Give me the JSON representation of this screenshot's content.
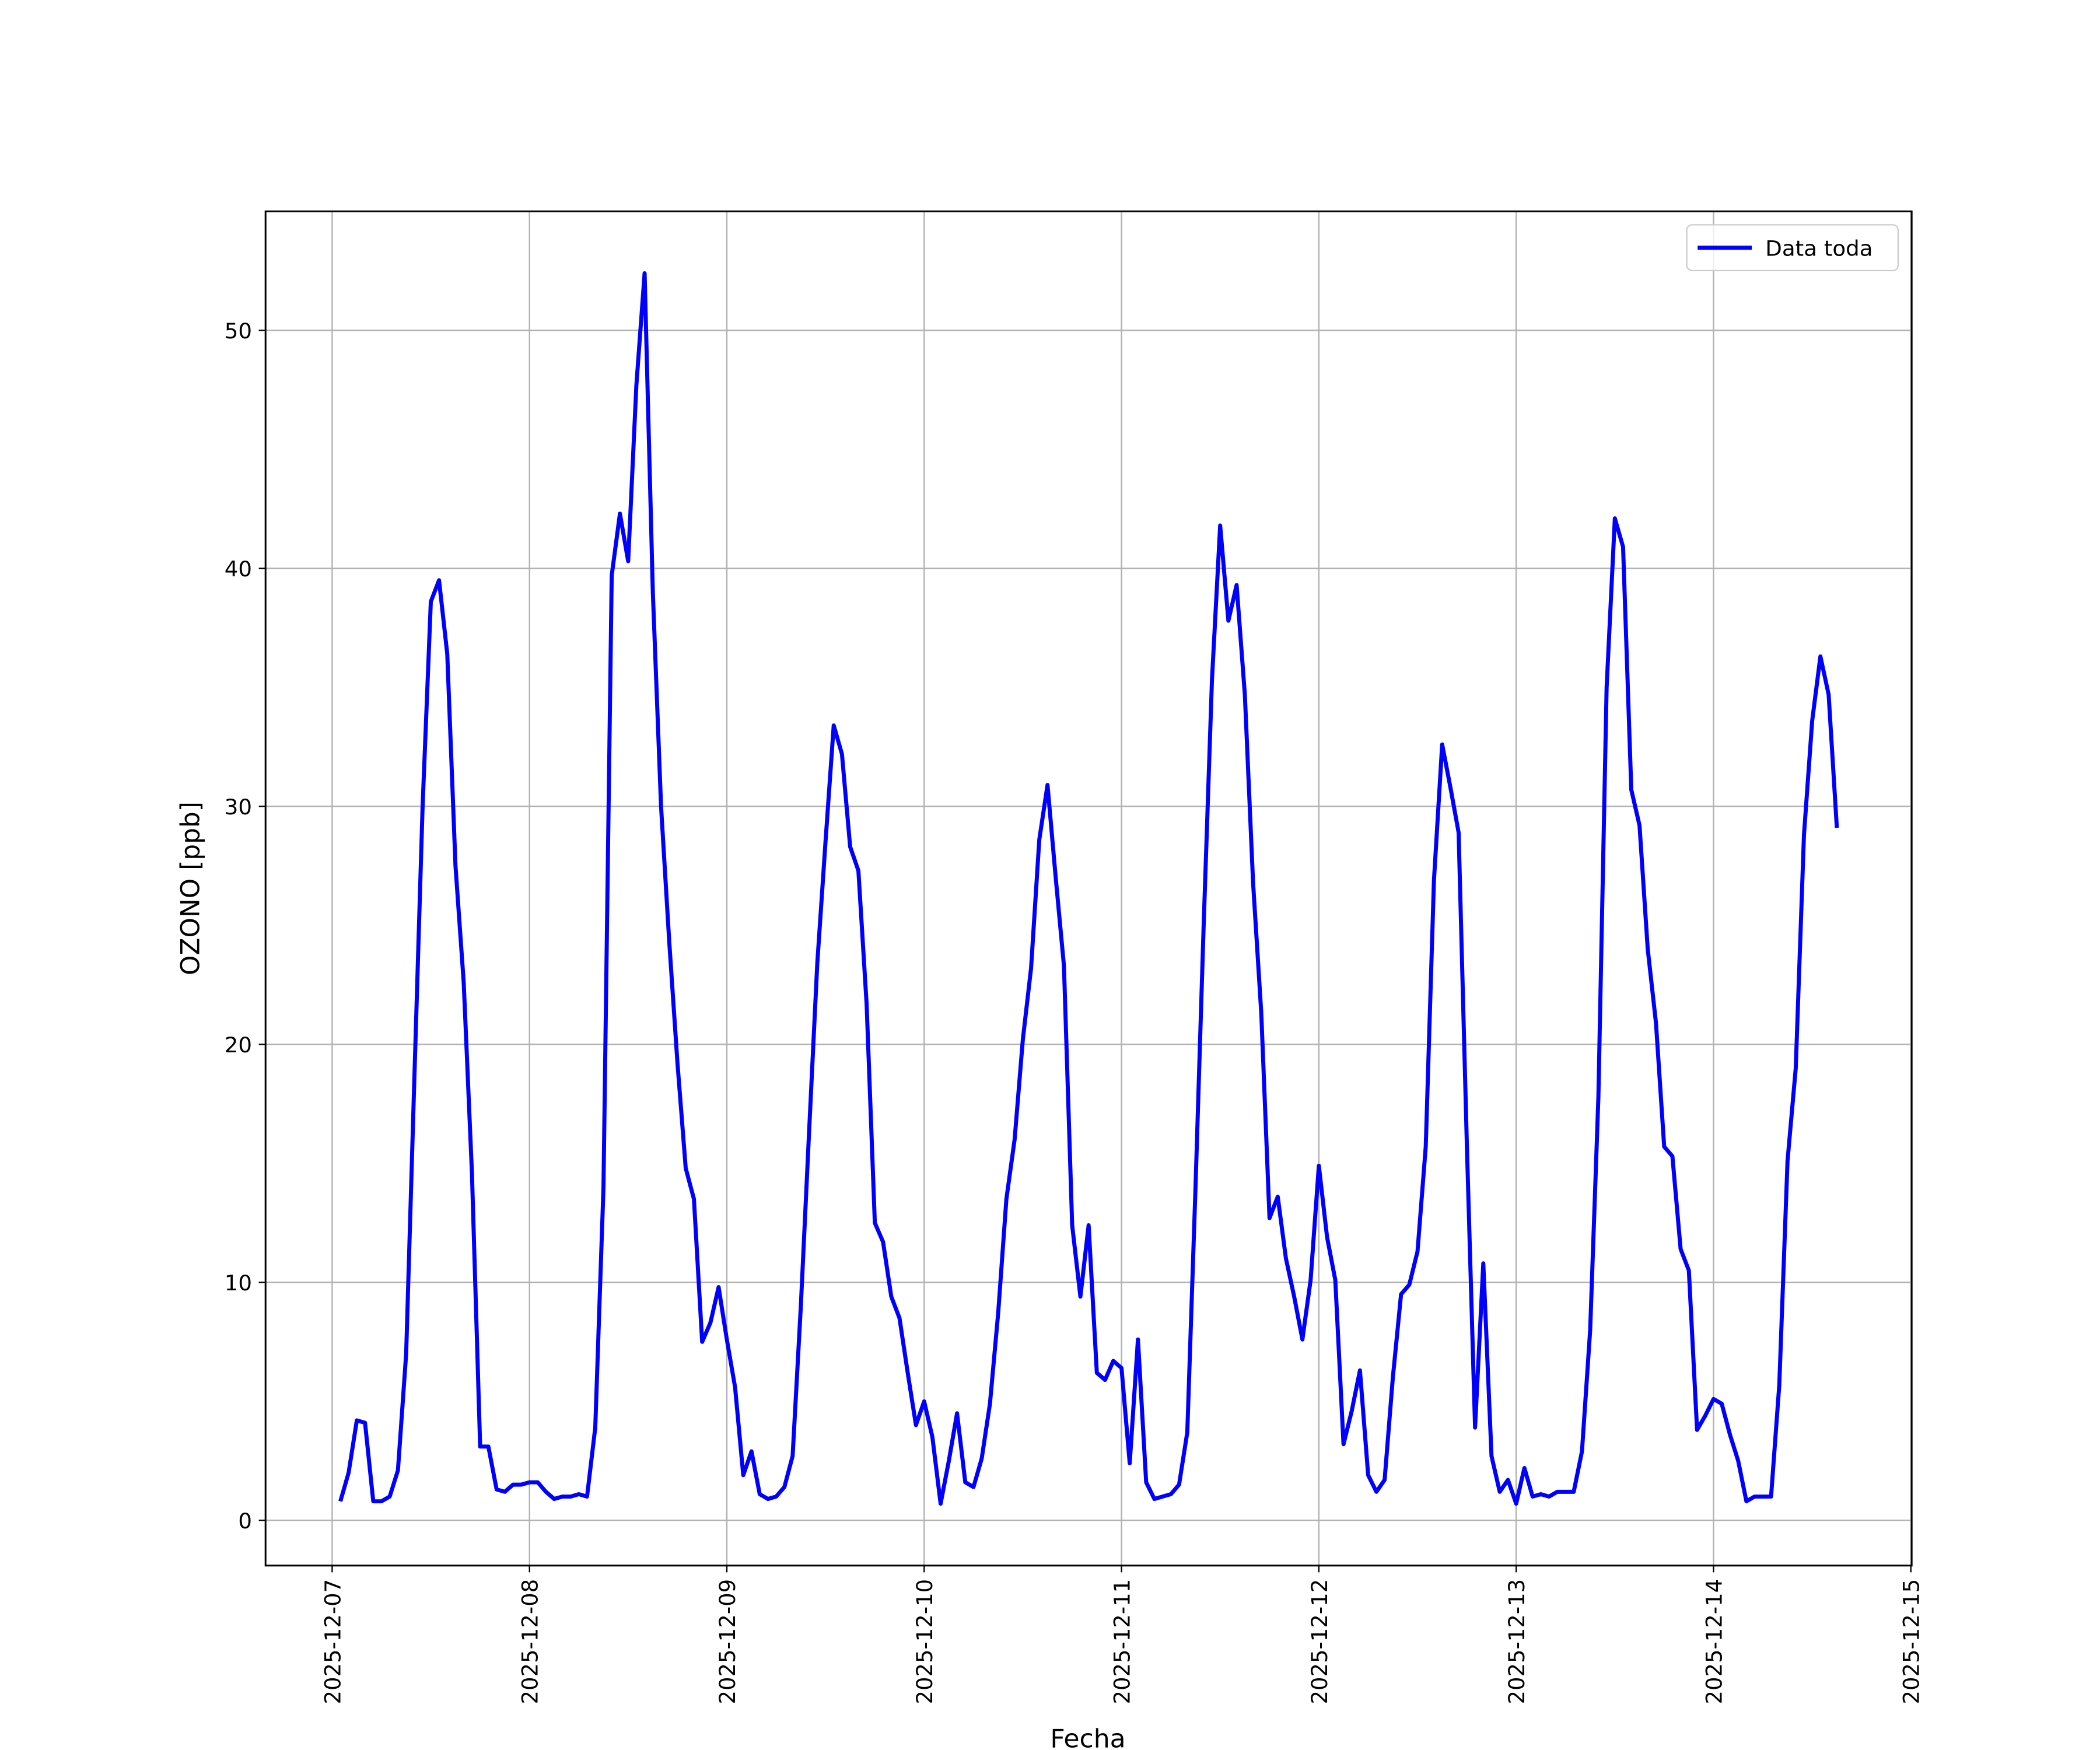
{
  "chart_data": {
    "type": "line",
    "xlabel": "Fecha",
    "ylabel": "OZONO [ppb]",
    "x": [
      "2025-12-07T01:00",
      "2025-12-07T02:00",
      "2025-12-07T03:00",
      "2025-12-07T04:00",
      "2025-12-07T05:00",
      "2025-12-07T06:00",
      "2025-12-07T07:00",
      "2025-12-07T08:00",
      "2025-12-07T09:00",
      "2025-12-07T10:00",
      "2025-12-07T11:00",
      "2025-12-07T12:00",
      "2025-12-07T13:00",
      "2025-12-07T14:00",
      "2025-12-07T15:00",
      "2025-12-07T16:00",
      "2025-12-07T17:00",
      "2025-12-07T18:00",
      "2025-12-07T19:00",
      "2025-12-07T20:00",
      "2025-12-07T21:00",
      "2025-12-07T22:00",
      "2025-12-07T23:00",
      "2025-12-08T00:00",
      "2025-12-08T01:00",
      "2025-12-08T02:00",
      "2025-12-08T03:00",
      "2025-12-08T04:00",
      "2025-12-08T05:00",
      "2025-12-08T06:00",
      "2025-12-08T07:00",
      "2025-12-08T08:00",
      "2025-12-08T09:00",
      "2025-12-08T10:00",
      "2025-12-08T11:00",
      "2025-12-08T12:00",
      "2025-12-08T13:00",
      "2025-12-08T14:00",
      "2025-12-08T15:00",
      "2025-12-08T16:00",
      "2025-12-08T17:00",
      "2025-12-08T18:00",
      "2025-12-08T19:00",
      "2025-12-08T20:00",
      "2025-12-08T21:00",
      "2025-12-08T22:00",
      "2025-12-08T23:00",
      "2025-12-09T00:00",
      "2025-12-09T01:00",
      "2025-12-09T02:00",
      "2025-12-09T03:00",
      "2025-12-09T04:00",
      "2025-12-09T05:00",
      "2025-12-09T06:00",
      "2025-12-09T07:00",
      "2025-12-09T08:00",
      "2025-12-09T09:00",
      "2025-12-09T10:00",
      "2025-12-09T11:00",
      "2025-12-09T12:00",
      "2025-12-09T13:00",
      "2025-12-09T14:00",
      "2025-12-09T15:00",
      "2025-12-09T16:00",
      "2025-12-09T17:00",
      "2025-12-09T18:00",
      "2025-12-09T19:00",
      "2025-12-09T20:00",
      "2025-12-09T21:00",
      "2025-12-09T22:00",
      "2025-12-09T23:00",
      "2025-12-10T00:00",
      "2025-12-10T01:00",
      "2025-12-10T02:00",
      "2025-12-10T03:00",
      "2025-12-10T04:00",
      "2025-12-10T05:00",
      "2025-12-10T06:00",
      "2025-12-10T07:00",
      "2025-12-10T08:00",
      "2025-12-10T09:00",
      "2025-12-10T10:00",
      "2025-12-10T11:00",
      "2025-12-10T12:00",
      "2025-12-10T13:00",
      "2025-12-10T14:00",
      "2025-12-10T15:00",
      "2025-12-10T16:00",
      "2025-12-10T17:00",
      "2025-12-10T18:00",
      "2025-12-10T19:00",
      "2025-12-10T20:00",
      "2025-12-10T21:00",
      "2025-12-10T22:00",
      "2025-12-10T23:00",
      "2025-12-11T00:00",
      "2025-12-11T01:00",
      "2025-12-11T02:00",
      "2025-12-11T03:00",
      "2025-12-11T04:00",
      "2025-12-11T05:00",
      "2025-12-11T06:00",
      "2025-12-11T07:00",
      "2025-12-11T08:00",
      "2025-12-11T09:00",
      "2025-12-11T10:00",
      "2025-12-11T11:00",
      "2025-12-11T12:00",
      "2025-12-11T13:00",
      "2025-12-11T14:00",
      "2025-12-11T15:00",
      "2025-12-11T16:00",
      "2025-12-11T17:00",
      "2025-12-11T18:00",
      "2025-12-11T19:00",
      "2025-12-11T20:00",
      "2025-12-11T21:00",
      "2025-12-11T22:00",
      "2025-12-11T23:00",
      "2025-12-12T00:00",
      "2025-12-12T01:00",
      "2025-12-12T02:00",
      "2025-12-12T03:00",
      "2025-12-12T04:00",
      "2025-12-12T05:00",
      "2025-12-12T06:00",
      "2025-12-12T07:00",
      "2025-12-12T08:00",
      "2025-12-12T09:00",
      "2025-12-12T10:00",
      "2025-12-12T11:00",
      "2025-12-12T12:00",
      "2025-12-12T13:00",
      "2025-12-12T14:00",
      "2025-12-12T15:00",
      "2025-12-12T16:00",
      "2025-12-12T17:00",
      "2025-12-12T18:00",
      "2025-12-12T19:00",
      "2025-12-12T20:00",
      "2025-12-12T21:00",
      "2025-12-12T22:00",
      "2025-12-12T23:00",
      "2025-12-13T00:00",
      "2025-12-13T01:00",
      "2025-12-13T02:00",
      "2025-12-13T03:00",
      "2025-12-13T04:00",
      "2025-12-13T05:00",
      "2025-12-13T06:00",
      "2025-12-13T07:00",
      "2025-12-13T08:00",
      "2025-12-13T09:00",
      "2025-12-13T10:00",
      "2025-12-13T11:00",
      "2025-12-13T12:00",
      "2025-12-13T13:00",
      "2025-12-13T14:00",
      "2025-12-13T15:00",
      "2025-12-13T16:00",
      "2025-12-13T17:00",
      "2025-12-13T18:00",
      "2025-12-13T19:00",
      "2025-12-13T20:00",
      "2025-12-13T21:00",
      "2025-12-13T22:00",
      "2025-12-13T23:00",
      "2025-12-14T00:00",
      "2025-12-14T01:00",
      "2025-12-14T02:00",
      "2025-12-14T03:00",
      "2025-12-14T04:00",
      "2025-12-14T05:00",
      "2025-12-14T06:00",
      "2025-12-14T07:00",
      "2025-12-14T08:00",
      "2025-12-14T09:00",
      "2025-12-14T10:00",
      "2025-12-14T11:00",
      "2025-12-14T12:00",
      "2025-12-14T13:00",
      "2025-12-14T14:00",
      "2025-12-14T15:00"
    ],
    "series": [
      {
        "name": "Data toda",
        "color": "blue",
        "values": [
          0.8,
          2.0,
          4.2,
          4.1,
          0.8,
          0.8,
          1.0,
          2.1,
          7.0,
          18.6,
          30,
          38.6,
          39.5,
          36.4,
          27.5,
          22.6,
          14.6,
          3.1,
          3.1,
          1.3,
          1.2,
          1.5,
          1.5,
          1.6,
          1.6,
          1.2,
          0.9,
          1.0,
          1.0,
          1.1,
          1.0,
          3.9,
          14,
          39.7,
          42.3,
          40.3,
          47.7,
          52.4,
          39.0,
          30,
          24.3,
          19.2,
          14.8,
          13.5,
          7.5,
          8.3,
          9.8,
          7.6,
          5.6,
          1.9,
          2.9,
          1.1,
          0.9,
          1.0,
          1.4,
          2.7,
          9.0,
          16.3,
          23.4,
          28.5,
          33.4,
          32.2,
          28.3,
          27.3,
          21.7,
          12.5,
          11.7,
          9.4,
          8.5,
          6.2,
          4.0,
          5.0,
          3.5,
          0.7,
          2.5,
          4.5,
          1.6,
          1.4,
          2.6,
          4.9,
          8.7,
          13.5,
          16,
          20.2,
          23.2,
          28.6,
          30.9,
          27,
          23.3,
          12.4,
          9.4,
          12.4,
          6.2,
          5.9,
          6.7,
          6.4,
          2.4,
          7.6,
          1.6,
          0.9,
          1.0,
          1.1,
          1.5,
          3.7,
          14,
          25.1,
          35.3,
          41.8,
          37.8,
          39.3,
          34.7,
          26.8,
          21.3,
          12.7,
          13.6,
          11,
          9.4,
          7.6,
          10.1,
          14.9,
          11.9,
          10.1,
          3.2,
          4.6,
          6.3,
          1.9,
          1.2,
          1.7,
          6.0,
          9.5,
          9.9,
          11.3,
          15.7,
          26.9,
          32.6,
          30.8,
          28.9,
          15.8,
          3.9,
          10.8,
          2.7,
          1.2,
          1.7,
          0.7,
          2.2,
          1.0,
          1.1,
          1.0,
          1.2,
          1.2,
          1.2,
          2.9,
          8.0,
          17.8,
          35.0,
          42.1,
          40.9,
          30.7,
          29.2,
          24,
          20.9,
          15.7,
          15.3,
          11.4,
          10.5,
          3.8,
          4.4,
          5.1,
          4.9,
          3.6,
          2.5,
          0.8,
          1.0,
          1.0,
          1.0,
          5.7,
          15.1,
          19,
          28.8,
          33.6,
          36.3,
          34.7,
          29.1
        ]
      }
    ],
    "xlim": [
      "2025-12-06T15:54",
      "2025-12-15T00:06"
    ],
    "xticks": [
      "2025-12-07",
      "2025-12-08",
      "2025-12-09",
      "2025-12-10",
      "2025-12-11",
      "2025-12-12",
      "2025-12-13",
      "2025-12-14",
      "2025-12-15"
    ],
    "ylim": [
      -1.9,
      55
    ],
    "yticks": [
      0,
      10,
      20,
      30,
      40,
      50
    ],
    "grid": true,
    "legend": "upper right"
  }
}
